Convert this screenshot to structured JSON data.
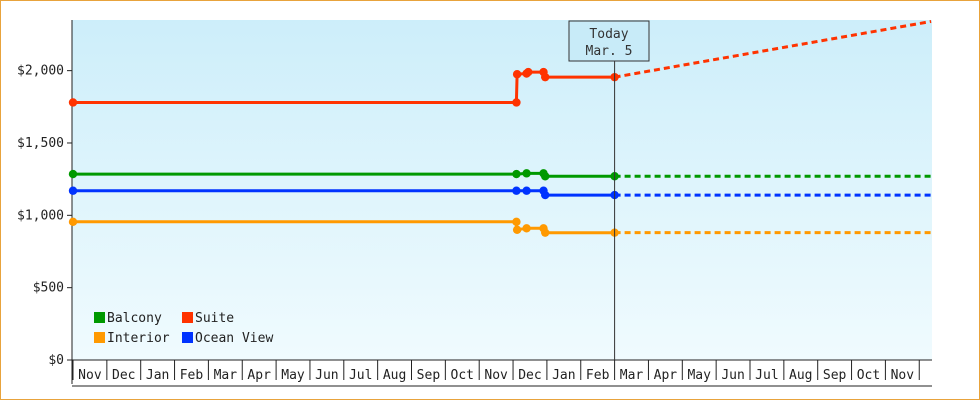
{
  "chart_data": {
    "type": "line",
    "x_axis": {
      "tick_labels": [
        "Nov",
        "Dec",
        "Jan",
        "Feb",
        "Mar",
        "Apr",
        "May",
        "Jun",
        "Jul",
        "Aug",
        "Sep",
        "Oct",
        "Nov",
        "Dec",
        "Jan",
        "Feb",
        "Mar",
        "Apr",
        "May",
        "Jun",
        "Jul",
        "Aug",
        "Sep",
        "Oct",
        "Nov"
      ]
    },
    "y_axis": {
      "ylim": [
        0,
        2350
      ],
      "ticks": [
        0,
        500,
        1000,
        1500,
        2000
      ],
      "tick_labels": [
        "$0",
        "$500",
        "$1,000",
        "$1,500",
        "$2,000"
      ]
    },
    "today_marker": {
      "line1": "Today",
      "line2": "Mar. 5",
      "x": 16.0
    },
    "grid": false,
    "legend_placement": "bottom-left",
    "series": [
      {
        "name": "Suite",
        "color": "#ff3300",
        "history": [
          [
            0,
            1780
          ],
          [
            13.1,
            1780
          ],
          [
            13.1,
            1780
          ],
          [
            13.12,
            1975
          ],
          [
            13.4,
            1980
          ],
          [
            13.4,
            1990
          ],
          [
            13.9,
            1990
          ],
          [
            13.9,
            1985
          ],
          [
            13.95,
            1955
          ],
          [
            16.0,
            1955
          ]
        ],
        "markers": [
          [
            0,
            1780
          ],
          [
            13.1,
            1780
          ],
          [
            13.12,
            1975
          ],
          [
            13.4,
            1980
          ],
          [
            13.45,
            1990
          ],
          [
            13.9,
            1990
          ],
          [
            13.95,
            1955
          ],
          [
            16.0,
            1955
          ]
        ],
        "forecast": [
          [
            16.0,
            1955
          ],
          [
            25.35,
            2340
          ]
        ]
      },
      {
        "name": "Balcony",
        "color": "#009900",
        "history": [
          [
            0,
            1285
          ],
          [
            13.1,
            1285
          ],
          [
            13.4,
            1290
          ],
          [
            13.9,
            1290
          ],
          [
            13.95,
            1270
          ],
          [
            16.0,
            1270
          ]
        ],
        "markers": [
          [
            0,
            1285
          ],
          [
            13.1,
            1285
          ],
          [
            13.4,
            1290
          ],
          [
            13.9,
            1290
          ],
          [
            13.95,
            1270
          ],
          [
            16.0,
            1270
          ]
        ],
        "forecast": [
          [
            16.0,
            1270
          ],
          [
            25.35,
            1270
          ]
        ]
      },
      {
        "name": "Ocean View",
        "color": "#0033ff",
        "history": [
          [
            0,
            1170
          ],
          [
            13.1,
            1170
          ],
          [
            13.4,
            1170
          ],
          [
            13.9,
            1170
          ],
          [
            13.95,
            1140
          ],
          [
            16.0,
            1140
          ]
        ],
        "markers": [
          [
            0,
            1170
          ],
          [
            13.1,
            1170
          ],
          [
            13.4,
            1170
          ],
          [
            13.9,
            1170
          ],
          [
            13.95,
            1140
          ],
          [
            16.0,
            1140
          ]
        ],
        "forecast": [
          [
            16.0,
            1140
          ],
          [
            25.35,
            1140
          ]
        ]
      },
      {
        "name": "Interior",
        "color": "#ff9900",
        "history": [
          [
            0,
            955
          ],
          [
            13.1,
            955
          ],
          [
            13.1,
            900
          ],
          [
            13.4,
            910
          ],
          [
            13.9,
            910
          ],
          [
            13.95,
            880
          ],
          [
            16.0,
            880
          ]
        ],
        "markers": [
          [
            0,
            955
          ],
          [
            13.1,
            955
          ],
          [
            13.12,
            900
          ],
          [
            13.4,
            910
          ],
          [
            13.9,
            910
          ],
          [
            13.95,
            880
          ],
          [
            16.0,
            880
          ]
        ],
        "forecast": [
          [
            16.0,
            880
          ],
          [
            25.35,
            880
          ]
        ]
      }
    ],
    "legend": [
      {
        "label": "Balcony",
        "color": "#009900"
      },
      {
        "label": "Suite",
        "color": "#ff3300"
      },
      {
        "label": "Interior",
        "color": "#ff9900"
      },
      {
        "label": "Ocean View",
        "color": "#0033ff"
      }
    ]
  }
}
